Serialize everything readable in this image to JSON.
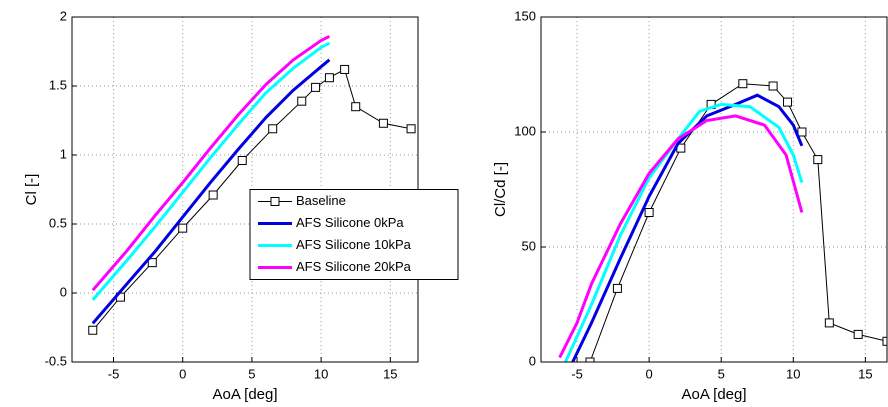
{
  "chart_data": [
    {
      "type": "line",
      "xlabel": "AoA [deg]",
      "ylabel": "Cl [-]",
      "xlim": [
        -8,
        17
      ],
      "xticks": [
        -5,
        0,
        5,
        10,
        15
      ],
      "ylim": [
        -0.5,
        2
      ],
      "yticks": [
        -0.5,
        0,
        0.5,
        1,
        1.5,
        2
      ],
      "grid": true,
      "legend": "center right",
      "series": [
        {
          "name": "Baseline",
          "color": "#000000",
          "marker": "square",
          "x": [
            -6.5,
            -4.5,
            -2.2,
            0,
            2.2,
            4.3,
            6.5,
            8.6,
            9.6,
            10.6,
            11.7,
            12.5,
            14.5,
            16.5
          ],
          "values": [
            -0.27,
            -0.03,
            0.22,
            0.47,
            0.71,
            0.96,
            1.19,
            1.39,
            1.49,
            1.56,
            1.62,
            1.35,
            1.23,
            1.19
          ]
        },
        {
          "name": "AFS Silicone 0kPa",
          "color": "#0000e0",
          "x": [
            -6.5,
            -4,
            -2,
            0,
            2,
            4,
            6,
            8,
            10,
            10.6
          ],
          "values": [
            -0.22,
            0.07,
            0.3,
            0.55,
            0.8,
            1.04,
            1.27,
            1.47,
            1.64,
            1.69
          ]
        },
        {
          "name": "AFS Silicone 10kPa",
          "color": "#00ffff",
          "x": [
            -6.5,
            -4,
            -2,
            0,
            2,
            4,
            6,
            8,
            10,
            10.6
          ],
          "values": [
            -0.05,
            0.24,
            0.48,
            0.73,
            0.98,
            1.22,
            1.45,
            1.63,
            1.78,
            1.81
          ]
        },
        {
          "name": "AFS Silicone 20kPa",
          "color": "#ff00ff",
          "x": [
            -6.5,
            -4,
            -2,
            0,
            2,
            4,
            6,
            8,
            10,
            10.6
          ],
          "values": [
            0.02,
            0.31,
            0.56,
            0.8,
            1.05,
            1.29,
            1.51,
            1.69,
            1.83,
            1.86
          ]
        }
      ]
    },
    {
      "type": "line",
      "xlabel": "AoA [deg]",
      "ylabel": "Cl/Cd [-]",
      "xlim": [
        -7.5,
        16.5
      ],
      "xticks": [
        -5,
        0,
        5,
        10,
        15
      ],
      "ylim": [
        0,
        150
      ],
      "yticks": [
        0,
        50,
        100,
        150
      ],
      "grid": true,
      "series": [
        {
          "color": "#000000",
          "marker": "square",
          "x": [
            -4.1,
            -2.2,
            0,
            2.2,
            4.3,
            6.5,
            8.6,
            9.6,
            10.6,
            11.7,
            12.5,
            14.5,
            16.5
          ],
          "values": [
            0,
            32,
            65,
            93,
            112,
            121,
            120,
            113,
            100,
            88,
            17,
            12,
            9
          ]
        },
        {
          "color": "#0000e0",
          "x": [
            -5.3,
            -4,
            -2,
            0,
            2,
            4,
            6,
            7.5,
            9,
            10,
            10.6
          ],
          "values": [
            0,
            17,
            45,
            72,
            95,
            107,
            112,
            116,
            111,
            103,
            94
          ]
        },
        {
          "color": "#00ffff",
          "x": [
            -5.8,
            -4,
            -2,
            0,
            2,
            3.5,
            5,
            7,
            9,
            10,
            10.6
          ],
          "values": [
            0,
            25,
            55,
            80,
            97,
            109,
            112,
            111,
            102,
            90,
            78
          ]
        },
        {
          "color": "#ff00ff",
          "x": [
            -6.2,
            -5,
            -4,
            -2,
            0,
            2,
            4,
            6,
            8,
            9.5,
            10.6
          ],
          "values": [
            2,
            17,
            34,
            60,
            82,
            97,
            105,
            107,
            103,
            90,
            65
          ]
        }
      ]
    }
  ]
}
